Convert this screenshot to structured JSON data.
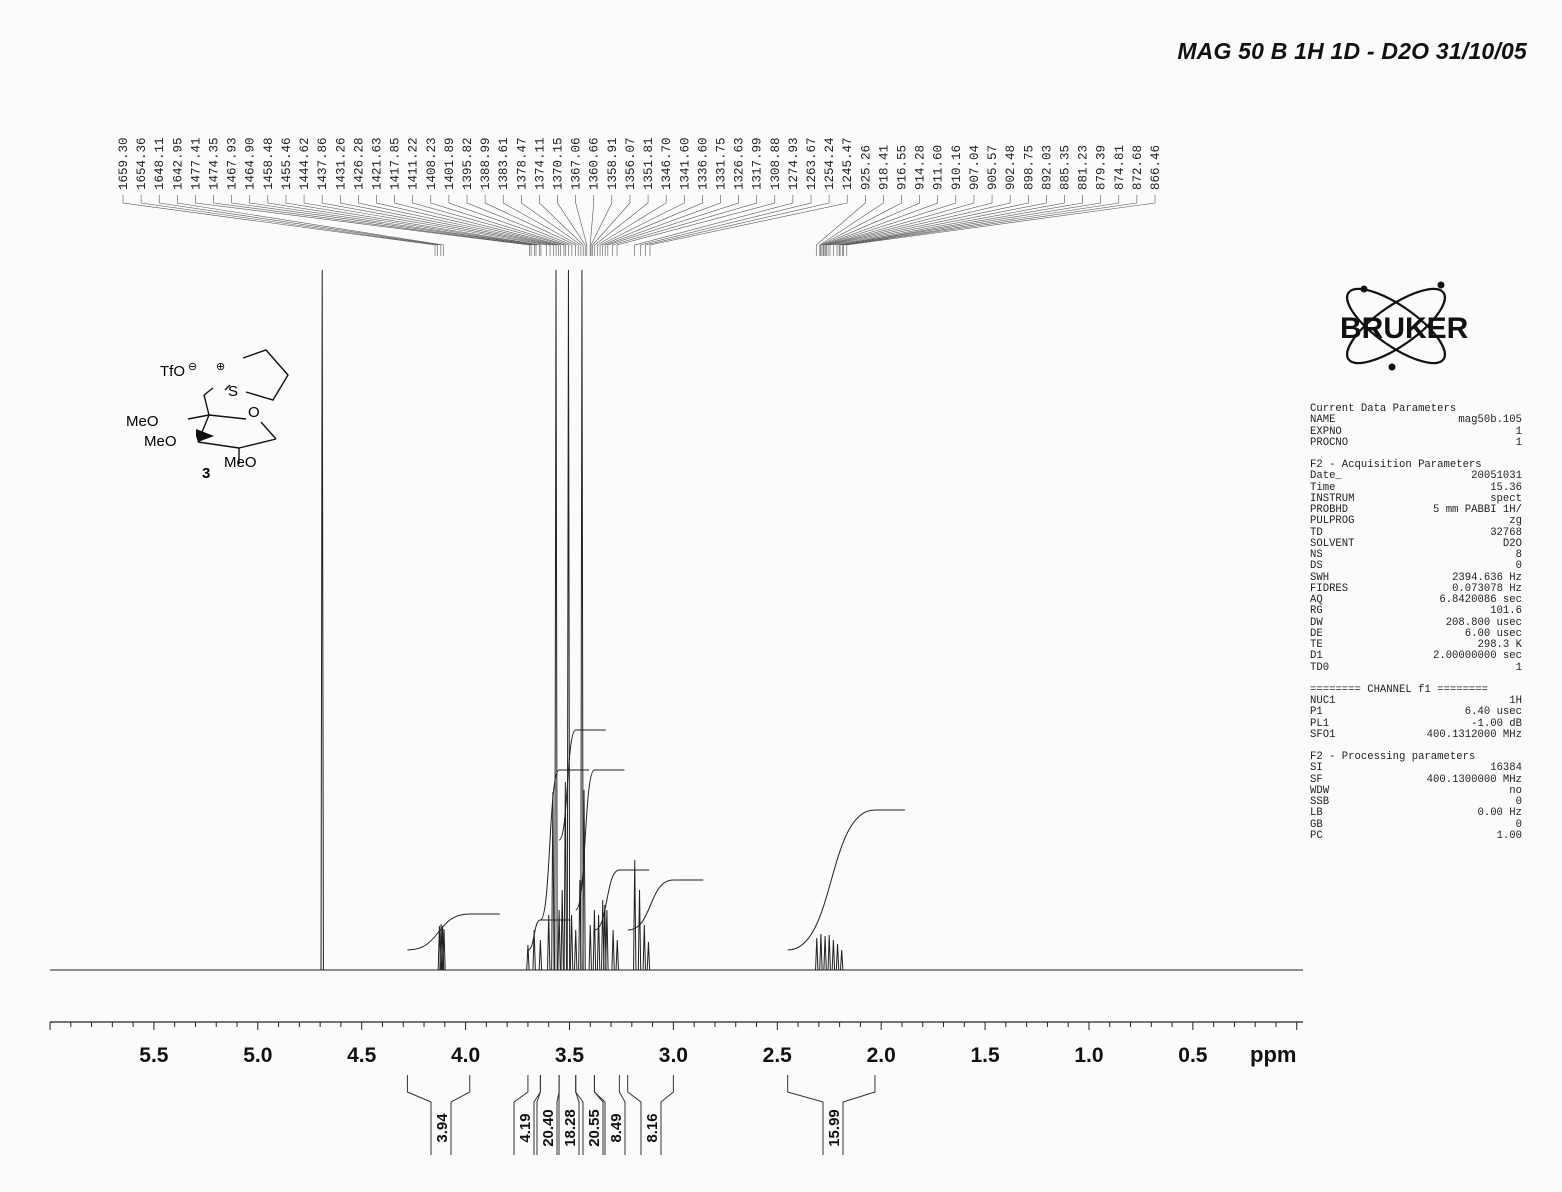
{
  "title": "MAG 50 B  1H 1D - D2O  31/10/05",
  "logo_text": "BRUKER",
  "peak_labels": [
    "1659.30",
    "1654.36",
    "1648.11",
    "1642.95",
    "1477.41",
    "1474.35",
    "1467.93",
    "1464.90",
    "1458.48",
    "1455.46",
    "1444.62",
    "1437.86",
    "1431.26",
    "1426.28",
    "1421.63",
    "1417.85",
    "1411.22",
    "1408.23",
    "1401.89",
    "1395.82",
    "1388.99",
    "1383.61",
    "1378.47",
    "1374.11",
    "1370.15",
    "1367.06",
    "1360.66",
    "1358.91",
    "1356.07",
    "1351.81",
    "1346.70",
    "1341.60",
    "1336.60",
    "1331.75",
    "1326.63",
    "1317.99",
    "1308.88",
    "1274.93",
    "1263.67",
    "1254.24",
    "1245.47",
    "925.26",
    "918.41",
    "916.55",
    "914.28",
    "911.60",
    "910.16",
    "907.04",
    "905.57",
    "902.48",
    "898.75",
    "892.03",
    "885.35",
    "881.23",
    "879.39",
    "874.81",
    "872.68",
    "866.46"
  ],
  "structure": {
    "counterion": "TfO",
    "heteroatom_s": "S",
    "ring_o": "O",
    "substituents": [
      "MeO",
      "MeO",
      "MeO"
    ],
    "compound_number": "3"
  },
  "params": {
    "current_header": "Current Data Parameters",
    "current": [
      [
        "NAME",
        "mag50b.105"
      ],
      [
        "EXPNO",
        "1"
      ],
      [
        "PROCNO",
        "1"
      ]
    ],
    "acq_header": "F2 - Acquisition Parameters",
    "acq": [
      [
        "Date_",
        "20051031"
      ],
      [
        "Time",
        "15.36"
      ],
      [
        "INSTRUM",
        "spect"
      ],
      [
        "PROBHD",
        "5 mm PABBI 1H/"
      ],
      [
        "PULPROG",
        "zg"
      ],
      [
        "TD",
        "32768"
      ],
      [
        "SOLVENT",
        "D2O"
      ],
      [
        "NS",
        "8"
      ],
      [
        "DS",
        "0"
      ],
      [
        "SWH",
        "2394.636 Hz"
      ],
      [
        "FIDRES",
        "0.073078 Hz"
      ],
      [
        "AQ",
        "6.8420086 sec"
      ],
      [
        "RG",
        "101.6"
      ],
      [
        "DW",
        "208.800 usec"
      ],
      [
        "DE",
        "6.00 usec"
      ],
      [
        "TE",
        "298.3 K"
      ],
      [
        "D1",
        "2.00000000 sec"
      ],
      [
        "TD0",
        "1"
      ]
    ],
    "channel_header": "======== CHANNEL f1 ========",
    "channel": [
      [
        "NUC1",
        "1H"
      ],
      [
        "P1",
        "6.40 usec"
      ],
      [
        "PL1",
        "-1.00 dB"
      ],
      [
        "SFO1",
        "400.1312000 MHz"
      ]
    ],
    "proc_header": "F2 - Processing parameters",
    "proc": [
      [
        "SI",
        "16384"
      ],
      [
        "SF",
        "400.1300000 MHz"
      ],
      [
        "WDW",
        "no"
      ],
      [
        "SSB",
        "0"
      ],
      [
        "LB",
        "0.00 Hz"
      ],
      [
        "GB",
        "0"
      ],
      [
        "PC",
        "1.00"
      ]
    ]
  },
  "chart_data": {
    "type": "line",
    "x_axis": {
      "tick_labels": [
        "5.5",
        "5.0",
        "4.5",
        "4.0",
        "3.5",
        "3.0",
        "2.5",
        "2.0",
        "1.5",
        "1.0",
        "0.5"
      ],
      "unit_label": "ppm",
      "reversed": true,
      "xlim": [
        6.0,
        -0.03
      ],
      "minor_tick_step": 0.1
    },
    "peaks_ppm_height": [
      [
        4.69,
        700
      ],
      [
        4.126,
        44
      ],
      [
        4.118,
        46
      ],
      [
        4.111,
        44
      ],
      [
        4.104,
        41
      ],
      [
        3.7,
        25
      ],
      [
        3.67,
        40
      ],
      [
        3.64,
        30
      ],
      [
        3.6,
        55
      ],
      [
        3.58,
        178
      ],
      [
        3.565,
        700
      ],
      [
        3.55,
        60
      ],
      [
        3.535,
        80
      ],
      [
        3.52,
        188
      ],
      [
        3.505,
        700
      ],
      [
        3.49,
        55
      ],
      [
        3.47,
        40
      ],
      [
        3.45,
        90
      ],
      [
        3.44,
        700
      ],
      [
        3.43,
        180
      ],
      [
        3.4,
        45
      ],
      [
        3.38,
        60
      ],
      [
        3.36,
        55
      ],
      [
        3.34,
        70
      ],
      [
        3.33,
        65
      ],
      [
        3.32,
        60
      ],
      [
        3.29,
        40
      ],
      [
        3.27,
        30
      ],
      [
        3.186,
        110
      ],
      [
        3.163,
        80
      ],
      [
        3.14,
        45
      ],
      [
        3.12,
        28
      ],
      [
        2.31,
        32
      ],
      [
        2.29,
        36
      ],
      [
        2.27,
        34
      ],
      [
        2.25,
        35
      ],
      [
        2.23,
        30
      ],
      [
        2.21,
        26
      ],
      [
        2.19,
        20
      ]
    ],
    "integrals": [
      {
        "label": "3.94",
        "from_ppm": 4.28,
        "to_ppm": 3.98,
        "level_before": 0,
        "level_after": 36
      },
      {
        "label": "4.19",
        "from_ppm": 3.7,
        "to_ppm": 3.64,
        "level_before": 0,
        "level_after": 30
      },
      {
        "label": "20.40",
        "from_ppm": 3.64,
        "to_ppm": 3.55,
        "level_before": 30,
        "level_after": 180
      },
      {
        "label": "18.28",
        "from_ppm": 3.55,
        "to_ppm": 3.47,
        "level_before": 110,
        "level_after": 220
      },
      {
        "label": "20.55",
        "from_ppm": 3.47,
        "to_ppm": 3.38,
        "level_before": 40,
        "level_after": 180
      },
      {
        "label": "8.49",
        "from_ppm": 3.38,
        "to_ppm": 3.26,
        "level_before": 20,
        "level_after": 80
      },
      {
        "label": "8.16",
        "from_ppm": 3.22,
        "to_ppm": 3.0,
        "level_before": 20,
        "level_after": 70
      },
      {
        "label": "15.99",
        "from_ppm": 2.45,
        "to_ppm": 2.03,
        "level_before": 0,
        "level_after": 140
      }
    ]
  }
}
